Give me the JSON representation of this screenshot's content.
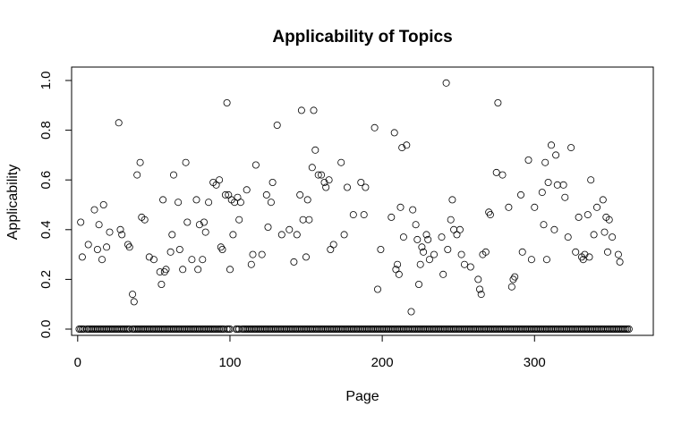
{
  "chart_data": {
    "type": "scatter",
    "title": "Applicability of Topics",
    "xlabel": "Page",
    "ylabel": "Applicability",
    "xlim": [
      -4,
      378
    ],
    "ylim": [
      -0.027,
      1.0
    ],
    "x_ticks": [
      0,
      100,
      200,
      300
    ],
    "y_ticks": [
      0.0,
      0.2,
      0.4,
      0.6,
      0.8,
      1.0
    ],
    "x_tick_labels": [
      "0",
      "100",
      "200",
      "300"
    ],
    "y_tick_labels": [
      "0.0",
      "0.2",
      "0.4",
      "0.6",
      "0.8",
      "1.0"
    ],
    "grid": false,
    "legend": "none",
    "zero_points_x": [
      1,
      2,
      3,
      4,
      6,
      7,
      8,
      9,
      10,
      11,
      12,
      13,
      14,
      15,
      16,
      17,
      18,
      19,
      20,
      21,
      22,
      23,
      24,
      25,
      26,
      27,
      28,
      29,
      30,
      31,
      32,
      33,
      34,
      36,
      37,
      38,
      39,
      40,
      41,
      42,
      43,
      44,
      45,
      46,
      47,
      48,
      49,
      50,
      51,
      52,
      53,
      54,
      55,
      56,
      57,
      58,
      59,
      60,
      61,
      62,
      63,
      64,
      65,
      66,
      67,
      68,
      69,
      70,
      71,
      72,
      73,
      74,
      75,
      76,
      77,
      78,
      79,
      80,
      81,
      82,
      83,
      84,
      85,
      86,
      87,
      88,
      89,
      90,
      91,
      92,
      93,
      94,
      95,
      96,
      98,
      99,
      100,
      104,
      105,
      106,
      108,
      109,
      110,
      111,
      112,
      113,
      114,
      115,
      116,
      117,
      118,
      119,
      120,
      121,
      122,
      123,
      124,
      125,
      126,
      127,
      128,
      129,
      130,
      131,
      132,
      133,
      134,
      135,
      136,
      137,
      138,
      139,
      140,
      141,
      142,
      143,
      144,
      145,
      146,
      147,
      148,
      149,
      150,
      151,
      152,
      153,
      154,
      155,
      156,
      157,
      158,
      159,
      160,
      161,
      162,
      163,
      164,
      165,
      166,
      167,
      168,
      169,
      170,
      171,
      172,
      173,
      174,
      175,
      176,
      177,
      178,
      179,
      180,
      181,
      182,
      183,
      184,
      185,
      186,
      187,
      188,
      189,
      190,
      191,
      192,
      193,
      194,
      195,
      196,
      197,
      198,
      199,
      200,
      201,
      202,
      203,
      204,
      205,
      206,
      207,
      208,
      209,
      210,
      211,
      212,
      213,
      214,
      215,
      216,
      217,
      218,
      219,
      220,
      221,
      222,
      223,
      224,
      225,
      226,
      227,
      228,
      229,
      230,
      231,
      232,
      233,
      234,
      235,
      236,
      237,
      238,
      239,
      240,
      241,
      242,
      243,
      244,
      245,
      246,
      247,
      248,
      249,
      250,
      251,
      252,
      253,
      254,
      255,
      256,
      257,
      258,
      259,
      260,
      261,
      262,
      263,
      264,
      265,
      266,
      267,
      268,
      269,
      270,
      271,
      272,
      273,
      274,
      275,
      276,
      277,
      278,
      279,
      280,
      281,
      282,
      283,
      284,
      285,
      286,
      287,
      288,
      289,
      290,
      291,
      292,
      293,
      294,
      295,
      296,
      297,
      298,
      299,
      300,
      301,
      302,
      303,
      304,
      305,
      306,
      307,
      308,
      309,
      310,
      311,
      312,
      313,
      314,
      315,
      316,
      317,
      318,
      319,
      320,
      321,
      322,
      323,
      324,
      325,
      326,
      327,
      328,
      329,
      330,
      331,
      332,
      333,
      334,
      335,
      336,
      337,
      338,
      339,
      340,
      341,
      342,
      343,
      344,
      345,
      346,
      347,
      348,
      349,
      350,
      351,
      352,
      353,
      354,
      355,
      356,
      357,
      358,
      359,
      360,
      361,
      362
    ],
    "points": [
      [
        2,
        0.43
      ],
      [
        3,
        0.29
      ],
      [
        7,
        0.34
      ],
      [
        11,
        0.48
      ],
      [
        13,
        0.32
      ],
      [
        14,
        0.42
      ],
      [
        16,
        0.28
      ],
      [
        17,
        0.5
      ],
      [
        19,
        0.33
      ],
      [
        21,
        0.39
      ],
      [
        27,
        0.83
      ],
      [
        28,
        0.4
      ],
      [
        29,
        0.38
      ],
      [
        33,
        0.34
      ],
      [
        34,
        0.33
      ],
      [
        36,
        0.14
      ],
      [
        37,
        0.11
      ],
      [
        39,
        0.62
      ],
      [
        41,
        0.67
      ],
      [
        42,
        0.45
      ],
      [
        44,
        0.44
      ],
      [
        47,
        0.29
      ],
      [
        50,
        0.28
      ],
      [
        54,
        0.23
      ],
      [
        55,
        0.18
      ],
      [
        56,
        0.52
      ],
      [
        57,
        0.23
      ],
      [
        58,
        0.24
      ],
      [
        61,
        0.31
      ],
      [
        62,
        0.38
      ],
      [
        63,
        0.62
      ],
      [
        66,
        0.51
      ],
      [
        67,
        0.32
      ],
      [
        69,
        0.24
      ],
      [
        71,
        0.67
      ],
      [
        72,
        0.43
      ],
      [
        75,
        0.28
      ],
      [
        78,
        0.52
      ],
      [
        79,
        0.24
      ],
      [
        80,
        0.42
      ],
      [
        82,
        0.28
      ],
      [
        83,
        0.43
      ],
      [
        84,
        0.39
      ],
      [
        86,
        0.51
      ],
      [
        89,
        0.59
      ],
      [
        91,
        0.58
      ],
      [
        93,
        0.6
      ],
      [
        94,
        0.33
      ],
      [
        95,
        0.32
      ],
      [
        97,
        0.54
      ],
      [
        98,
        0.91
      ],
      [
        99,
        0.54
      ],
      [
        100,
        0.24
      ],
      [
        101,
        0.52
      ],
      [
        102,
        0.38
      ],
      [
        103,
        0.51
      ],
      [
        105,
        0.53
      ],
      [
        106,
        0.44
      ],
      [
        107,
        0.51
      ],
      [
        111,
        0.56
      ],
      [
        114,
        0.26
      ],
      [
        115,
        0.3
      ],
      [
        117,
        0.66
      ],
      [
        121,
        0.3
      ],
      [
        124,
        0.54
      ],
      [
        125,
        0.41
      ],
      [
        127,
        0.51
      ],
      [
        128,
        0.59
      ],
      [
        131,
        0.82
      ],
      [
        134,
        0.38
      ],
      [
        139,
        0.4
      ],
      [
        142,
        0.27
      ],
      [
        144,
        0.38
      ],
      [
        146,
        0.54
      ],
      [
        147,
        0.88
      ],
      [
        148,
        0.44
      ],
      [
        150,
        0.29
      ],
      [
        151,
        0.52
      ],
      [
        152,
        0.44
      ],
      [
        154,
        0.65
      ],
      [
        155,
        0.88
      ],
      [
        156,
        0.72
      ],
      [
        158,
        0.62
      ],
      [
        160,
        0.62
      ],
      [
        162,
        0.59
      ],
      [
        163,
        0.57
      ],
      [
        165,
        0.6
      ],
      [
        166,
        0.32
      ],
      [
        168,
        0.34
      ],
      [
        173,
        0.67
      ],
      [
        175,
        0.38
      ],
      [
        177,
        0.57
      ],
      [
        181,
        0.46
      ],
      [
        186,
        0.59
      ],
      [
        188,
        0.46
      ],
      [
        189,
        0.57
      ],
      [
        195,
        0.81
      ],
      [
        197,
        0.16
      ],
      [
        199,
        0.32
      ],
      [
        206,
        0.45
      ],
      [
        208,
        0.79
      ],
      [
        209,
        0.24
      ],
      [
        210,
        0.26
      ],
      [
        211,
        0.22
      ],
      [
        212,
        0.49
      ],
      [
        213,
        0.73
      ],
      [
        214,
        0.37
      ],
      [
        216,
        0.74
      ],
      [
        219,
        0.07
      ],
      [
        220,
        0.48
      ],
      [
        222,
        0.42
      ],
      [
        223,
        0.36
      ],
      [
        224,
        0.18
      ],
      [
        225,
        0.26
      ],
      [
        226,
        0.33
      ],
      [
        227,
        0.31
      ],
      [
        229,
        0.38
      ],
      [
        230,
        0.36
      ],
      [
        231,
        0.28
      ],
      [
        234,
        0.3
      ],
      [
        239,
        0.37
      ],
      [
        240,
        0.22
      ],
      [
        242,
        0.99
      ],
      [
        243,
        0.32
      ],
      [
        245,
        0.44
      ],
      [
        246,
        0.52
      ],
      [
        247,
        0.4
      ],
      [
        249,
        0.38
      ],
      [
        251,
        0.4
      ],
      [
        252,
        0.3
      ],
      [
        254,
        0.26
      ],
      [
        258,
        0.25
      ],
      [
        263,
        0.2
      ],
      [
        264,
        0.16
      ],
      [
        265,
        0.14
      ],
      [
        266,
        0.3
      ],
      [
        268,
        0.31
      ],
      [
        270,
        0.47
      ],
      [
        271,
        0.46
      ],
      [
        275,
        0.63
      ],
      [
        276,
        0.91
      ],
      [
        279,
        0.62
      ],
      [
        283,
        0.49
      ],
      [
        285,
        0.17
      ],
      [
        286,
        0.2
      ],
      [
        287,
        0.21
      ],
      [
        291,
        0.54
      ],
      [
        292,
        0.31
      ],
      [
        296,
        0.68
      ],
      [
        298,
        0.28
      ],
      [
        300,
        0.49
      ],
      [
        305,
        0.55
      ],
      [
        306,
        0.42
      ],
      [
        307,
        0.67
      ],
      [
        308,
        0.28
      ],
      [
        309,
        0.59
      ],
      [
        311,
        0.74
      ],
      [
        313,
        0.4
      ],
      [
        314,
        0.7
      ],
      [
        315,
        0.58
      ],
      [
        319,
        0.58
      ],
      [
        320,
        0.53
      ],
      [
        322,
        0.37
      ],
      [
        324,
        0.73
      ],
      [
        327,
        0.31
      ],
      [
        329,
        0.45
      ],
      [
        331,
        0.29
      ],
      [
        332,
        0.28
      ],
      [
        333,
        0.3
      ],
      [
        335,
        0.46
      ],
      [
        336,
        0.29
      ],
      [
        337,
        0.6
      ],
      [
        339,
        0.38
      ],
      [
        341,
        0.49
      ],
      [
        345,
        0.52
      ],
      [
        346,
        0.39
      ],
      [
        347,
        0.45
      ],
      [
        348,
        0.31
      ],
      [
        349,
        0.44
      ],
      [
        351,
        0.37
      ],
      [
        355,
        0.3
      ],
      [
        356,
        0.27
      ]
    ]
  }
}
